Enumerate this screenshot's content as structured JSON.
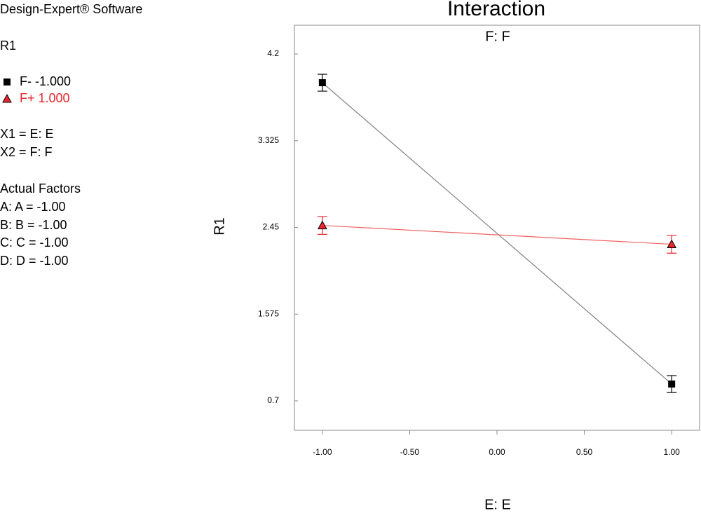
{
  "software": "Design-Expert® Software",
  "response": "R1",
  "factors_info": [
    "X1 = E: E",
    "X2 = F: F"
  ],
  "actual_factors_title": "Actual Factors",
  "actual_factors": [
    "A: A = -1.00",
    "B: B = -1.00",
    "C: C = -1.00",
    "D: D = -1.00"
  ],
  "chart_data": {
    "type": "line",
    "title": "Interaction",
    "subtitle": "F: F",
    "x_label": "E: E",
    "y_label": "R1",
    "x": [
      -1,
      1
    ],
    "series": [
      {
        "name": "F- -1.000",
        "color": "#000000",
        "line_color": "#808080",
        "marker": "square",
        "values": [
          3.91,
          0.87
        ],
        "errors": [
          0.085,
          0.085
        ]
      },
      {
        "name": "F+ 1.000",
        "color": "#e8262b",
        "line_color": "#f06060",
        "marker": "triangle",
        "values": [
          2.47,
          2.28
        ],
        "errors": [
          0.09,
          0.09
        ]
      }
    ],
    "xlim": [
      -1.16,
      1.16
    ],
    "xticks": [
      {
        "value": -1,
        "label": "-1.00"
      },
      {
        "value": -0.5,
        "label": "-0.50"
      },
      {
        "value": 0,
        "label": "0.00"
      },
      {
        "value": 0.5,
        "label": "0.50"
      },
      {
        "value": 1,
        "label": "1.00"
      }
    ],
    "ylim": [
      0.403,
      4.49
    ],
    "yticks": [
      0.7,
      1.575,
      2.45,
      3.325,
      4.2
    ]
  }
}
